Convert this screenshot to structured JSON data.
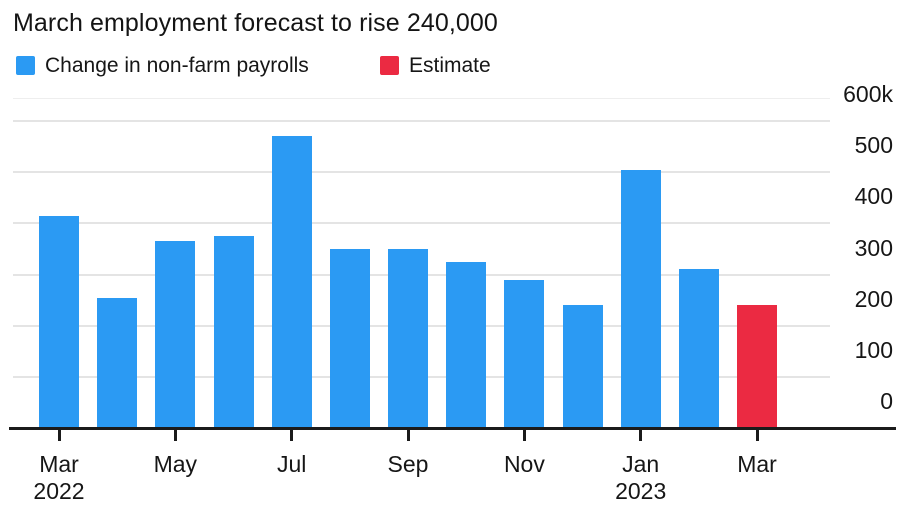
{
  "header": {
    "title": "March employment forecast to rise 240,000"
  },
  "legend": {
    "items": [
      {
        "key": "payrolls",
        "label": "Change in non-farm payrolls",
        "color": "#2B9AF3"
      },
      {
        "key": "estimate",
        "label": "Estimate",
        "color": "#EB2A42"
      }
    ]
  },
  "chart_data": {
    "type": "bar",
    "title": "March employment forecast to rise 240,000",
    "value_unit": "thousands of jobs (k)",
    "categories": [
      "Mar 2022",
      "Apr 2022",
      "May 2022",
      "Jun 2022",
      "Jul 2022",
      "Aug 2022",
      "Sep 2022",
      "Oct 2022",
      "Nov 2022",
      "Dec 2022",
      "Jan 2023",
      "Feb 2023",
      "Mar 2023"
    ],
    "series": [
      {
        "name": "Change in non-farm payrolls",
        "color": "#2B9AF3",
        "values": [
          415,
          255,
          365,
          375,
          570,
          350,
          350,
          325,
          290,
          240,
          505,
          310,
          null
        ]
      },
      {
        "name": "Estimate",
        "color": "#EB2A42",
        "values": [
          null,
          null,
          null,
          null,
          null,
          null,
          null,
          null,
          null,
          null,
          null,
          null,
          240
        ]
      }
    ],
    "ylim": [
      0,
      600
    ],
    "y_tick_step": 100,
    "y_ticks": [
      {
        "value": 0,
        "label": "0"
      },
      {
        "value": 100,
        "label": "100"
      },
      {
        "value": 200,
        "label": "200"
      },
      {
        "value": 300,
        "label": "300"
      },
      {
        "value": 400,
        "label": "400"
      },
      {
        "value": 500,
        "label": "500"
      },
      {
        "value": 600,
        "label": "600k"
      }
    ],
    "y_axis_side": "right",
    "x_ticks": [
      {
        "index": 0,
        "line1": "Mar",
        "line2": "2022"
      },
      {
        "index": 2,
        "line1": "May",
        "line2": ""
      },
      {
        "index": 4,
        "line1": "Jul",
        "line2": ""
      },
      {
        "index": 6,
        "line1": "Sep",
        "line2": ""
      },
      {
        "index": 8,
        "line1": "Nov",
        "line2": ""
      },
      {
        "index": 10,
        "line1": "Jan",
        "line2": "2023"
      },
      {
        "index": 12,
        "line1": "Mar",
        "line2": ""
      }
    ],
    "grid": "horizontal",
    "legend_position": "top-left"
  },
  "colors": {
    "text": "#161616",
    "gridline": "#e4e4e4",
    "axis": "#1b1b1b",
    "background": "#ffffff"
  }
}
